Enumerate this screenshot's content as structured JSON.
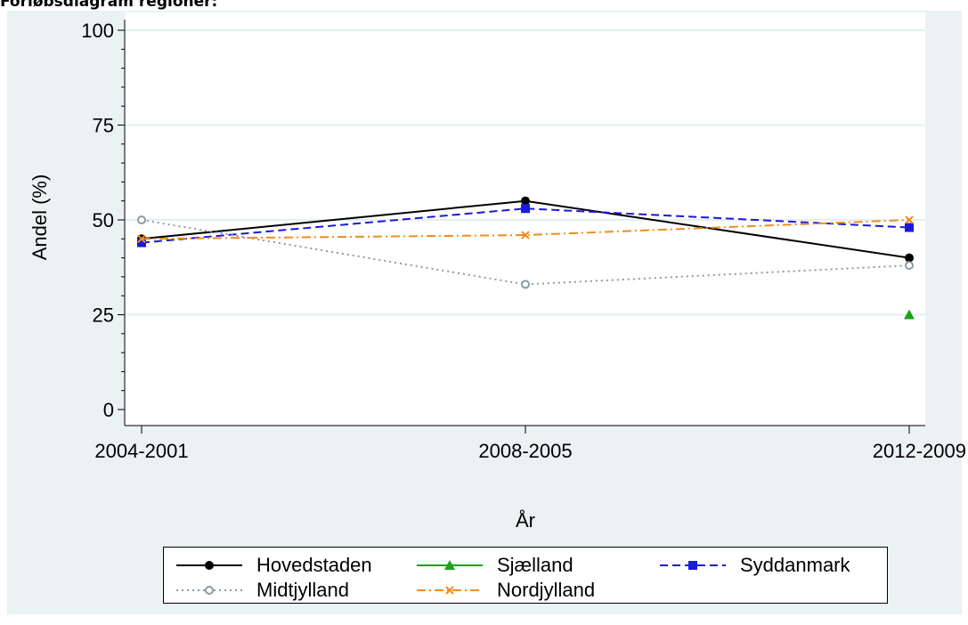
{
  "page": {
    "title": "Forløbsdiagram regioner:"
  },
  "chart_data": {
    "type": "line",
    "title": "",
    "xlabel": "År",
    "ylabel": "Andel (%)",
    "categories": [
      "2004-2001",
      "2008-2005",
      "2012-2009"
    ],
    "ylim": [
      0,
      100
    ],
    "yticks": [
      0,
      25,
      50,
      75,
      100
    ],
    "grid": true,
    "legend_position": "bottom",
    "series": [
      {
        "name": "Hovedstaden",
        "values": [
          45,
          55,
          40
        ],
        "color": "#000000",
        "dash": "solid",
        "marker": "circle"
      },
      {
        "name": "Sjælland",
        "values": [
          null,
          null,
          25
        ],
        "color": "#1aa31a",
        "dash": "solid",
        "marker": "triangle"
      },
      {
        "name": "Syddanmark",
        "values": [
          44,
          53,
          48
        ],
        "color": "#1a1adb",
        "dash": "dashed",
        "marker": "square"
      },
      {
        "name": "Midtjylland",
        "values": [
          50,
          33,
          38
        ],
        "color": "#8c9aa8",
        "dash": "dotted",
        "marker": "hollow-circle"
      },
      {
        "name": "Nordjylland",
        "values": [
          45,
          46,
          50
        ],
        "color": "#f08c1e",
        "dash": "dashdot",
        "marker": "x"
      }
    ]
  }
}
